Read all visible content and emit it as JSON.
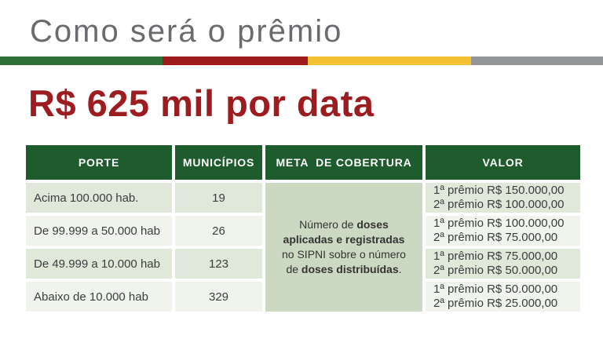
{
  "colors": {
    "title-gray": "#6a6b6e",
    "heading-red": "#9c1c20",
    "divider-green": "#2e7038",
    "divider-red": "#9e1b1e",
    "divider-yellow": "#f2c233",
    "divider-gray": "#939598",
    "header-green": "#1e5b2d",
    "row-odd": "#e0e8d9",
    "row-even": "#f0f4ec",
    "meta-bg": "#cbd8c2",
    "text-dark": "#3c3d3f"
  },
  "slide": {
    "title": "Como será o prêmio",
    "heading": "R$ 625 mil por data"
  },
  "table": {
    "headers": [
      "PORTE",
      "MUNICÍPIOS",
      "META  DE COBERTURA",
      "VALOR"
    ],
    "meta_cell": {
      "segments": [
        {
          "text": "Número de ",
          "bold": false
        },
        {
          "text": "doses\naplicadas e registradas",
          "bold": true
        },
        {
          "text": "\nno SIPNI sobre o número\nde ",
          "bold": false
        },
        {
          "text": "doses distribuídas",
          "bold": true
        },
        {
          "text": ".",
          "bold": false
        }
      ]
    },
    "rows": [
      {
        "porte": "Acima 100.000 hab.",
        "municipios": "19",
        "valor_line1": "1ª prêmio R$ 150.000,00",
        "valor_line2": "2ª prêmio R$ 100.000,00"
      },
      {
        "porte": "De 99.999 a 50.000 hab",
        "municipios": "26",
        "valor_line1": "1ª prêmio R$ 100.000,00",
        "valor_line2": "2ª prêmio R$ 75.000,00"
      },
      {
        "porte": "De 49.999 a 10.000 hab",
        "municipios": "123",
        "valor_line1": "1ª prêmio R$ 75.000,00",
        "valor_line2": "2ª prêmio R$ 50.000,00"
      },
      {
        "porte": "Abaixo de 10.000 hab",
        "municipios": "329",
        "valor_line1": "1ª prêmio R$ 50.000,00",
        "valor_line2": "2ª prêmio R$ 25.000,00"
      }
    ]
  }
}
